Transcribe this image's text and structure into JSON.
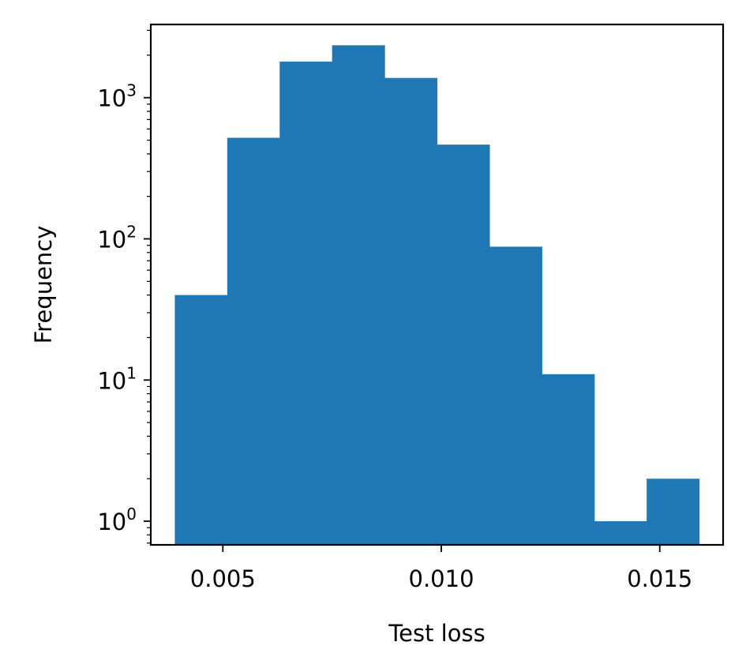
{
  "chart_data": {
    "type": "bar",
    "subtype": "histogram",
    "title": "",
    "xlabel": "Test loss",
    "ylabel": "Frequency",
    "x_scale": "linear",
    "y_scale": "log",
    "xlim": [
      0.00335,
      0.01645
    ],
    "ylim": [
      0.68,
      3300
    ],
    "x_ticks": [
      {
        "value": 0.005,
        "label": "0.005"
      },
      {
        "value": 0.01,
        "label": "0.010"
      },
      {
        "value": 0.015,
        "label": "0.015"
      }
    ],
    "y_ticks": [
      {
        "value": 1,
        "base": "10",
        "exp": "0"
      },
      {
        "value": 10,
        "base": "10",
        "exp": "1"
      },
      {
        "value": 100,
        "base": "10",
        "exp": "2"
      },
      {
        "value": 1000,
        "base": "10",
        "exp": "3"
      }
    ],
    "bin_edges": [
      0.0039,
      0.0051,
      0.0063,
      0.0075,
      0.0087,
      0.0099,
      0.0111,
      0.0123,
      0.0135,
      0.0147,
      0.0159
    ],
    "counts": [
      40,
      520,
      1800,
      2350,
      1380,
      465,
      88,
      11,
      1,
      2
    ],
    "bar_color": "#1f77b4",
    "grid": false,
    "legend": "none"
  }
}
